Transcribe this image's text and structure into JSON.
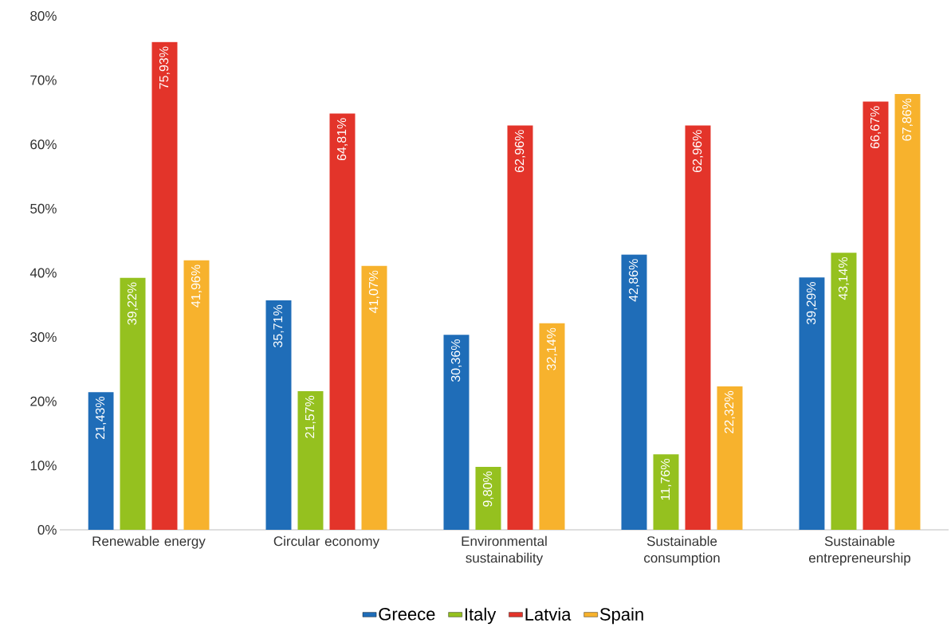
{
  "chart_data": {
    "type": "bar",
    "categories": [
      "Renewable energy",
      "Circular economy",
      "Environmental sustainability",
      "Sustainable consumption",
      "Sustainable entrepreneurship"
    ],
    "series": [
      {
        "name": "Greece",
        "color": "#1f6db8",
        "values": [
          21.43,
          35.71,
          30.36,
          42.86,
          39.29
        ],
        "value_labels": [
          "21,43%",
          "35,71%",
          "30,36%",
          "42,86%",
          "39,29%"
        ]
      },
      {
        "name": "Italy",
        "color": "#95c11f",
        "values": [
          39.22,
          21.57,
          9.8,
          11.76,
          43.14
        ],
        "value_labels": [
          "39,22%",
          "21,57%",
          "9,80%",
          "11,76%",
          "43,14%"
        ]
      },
      {
        "name": "Latvia",
        "color": "#e3342a",
        "values": [
          75.93,
          64.81,
          62.96,
          62.96,
          66.67
        ],
        "value_labels": [
          "75,93%",
          "64,81%",
          "62,96%",
          "62,96%",
          "66,67%"
        ]
      },
      {
        "name": "Spain",
        "color": "#f7b22d",
        "values": [
          41.96,
          41.07,
          32.14,
          22.32,
          67.86
        ],
        "value_labels": [
          "41,96%",
          "41,07%",
          "32,14%",
          "22,32%",
          "67,86%"
        ]
      }
    ],
    "ylim": [
      0,
      80
    ],
    "yticks": [
      {
        "value": 0,
        "label": "0%"
      },
      {
        "value": 10,
        "label": "10%"
      },
      {
        "value": 20,
        "label": "20%"
      },
      {
        "value": 30,
        "label": "30%"
      },
      {
        "value": 40,
        "label": "40%"
      },
      {
        "value": 50,
        "label": "50%"
      },
      {
        "value": 60,
        "label": "60%"
      },
      {
        "value": 70,
        "label": "70%"
      },
      {
        "value": 80,
        "label": "80%"
      }
    ],
    "grid": false,
    "legend": "bottom"
  }
}
